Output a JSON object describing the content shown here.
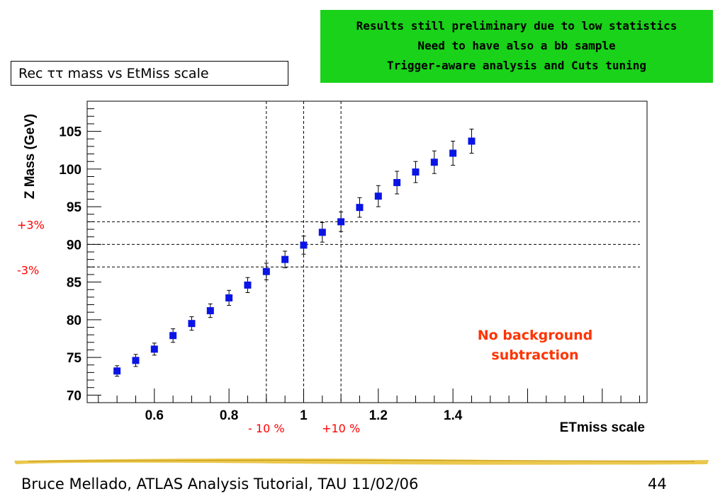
{
  "banner": {
    "lines": [
      "Results still preliminary due to low statistics",
      "Need to have also a bb sample",
      "Trigger-aware analysis and Cuts tuning"
    ]
  },
  "title_box": "Rec ττ mass vs EtMiss scale",
  "chart_data": {
    "type": "scatter",
    "xlabel": "ETmiss scale",
    "ylabel": "Z Mass (GeV)",
    "xlim": [
      0.42,
      1.92
    ],
    "ylim": [
      69,
      109
    ],
    "xticks": [
      0.6,
      0.8,
      1.0,
      1.2,
      1.4
    ],
    "xtick_labels": [
      "0.6",
      "0.8",
      "1",
      "1.2",
      "1.4"
    ],
    "yticks": [
      70,
      75,
      80,
      85,
      90,
      95,
      100,
      105
    ],
    "ytick_labels": [
      "70",
      "75",
      "80",
      "85",
      "90",
      "95",
      "100",
      "105"
    ],
    "marker_color": "#0a14e6",
    "points": [
      {
        "x": 0.5,
        "y": 73.2,
        "err": 0.7
      },
      {
        "x": 0.55,
        "y": 74.6,
        "err": 0.8
      },
      {
        "x": 0.6,
        "y": 76.1,
        "err": 0.8
      },
      {
        "x": 0.65,
        "y": 77.9,
        "err": 0.9
      },
      {
        "x": 0.7,
        "y": 79.5,
        "err": 0.9
      },
      {
        "x": 0.75,
        "y": 81.2,
        "err": 0.9
      },
      {
        "x": 0.8,
        "y": 82.9,
        "err": 1.0
      },
      {
        "x": 0.85,
        "y": 84.6,
        "err": 1.0
      },
      {
        "x": 0.9,
        "y": 86.4,
        "err": 1.1
      },
      {
        "x": 0.95,
        "y": 88.0,
        "err": 1.1
      },
      {
        "x": 1.0,
        "y": 89.9,
        "err": 1.2
      },
      {
        "x": 1.05,
        "y": 91.6,
        "err": 1.3
      },
      {
        "x": 1.1,
        "y": 93.0,
        "err": 1.3
      },
      {
        "x": 1.15,
        "y": 94.9,
        "err": 1.3
      },
      {
        "x": 1.2,
        "y": 96.4,
        "err": 1.4
      },
      {
        "x": 1.25,
        "y": 98.2,
        "err": 1.5
      },
      {
        "x": 1.3,
        "y": 99.6,
        "err": 1.4
      },
      {
        "x": 1.35,
        "y": 100.9,
        "err": 1.5
      },
      {
        "x": 1.4,
        "y": 102.1,
        "err": 1.6
      },
      {
        "x": 1.45,
        "y": 103.7,
        "err": 1.6
      }
    ],
    "vlines": [
      0.9,
      1.0,
      1.1
    ],
    "hlines": [
      {
        "y": 93,
        "label": "+3%"
      },
      {
        "y": 90,
        "label": ""
      },
      {
        "y": 87,
        "label": "-3%"
      }
    ],
    "vline_labels": [
      {
        "x": 0.9,
        "label": "- 10 %"
      },
      {
        "x": 1.1,
        "label": "+10 %"
      }
    ],
    "annotation": [
      "No background",
      "subtraction"
    ],
    "annotation_color": "#ff3300",
    "label_color": "#ff0000"
  },
  "footer": "Bruce Mellado, ATLAS Analysis Tutorial, TAU 11/02/06",
  "page_number": "44"
}
